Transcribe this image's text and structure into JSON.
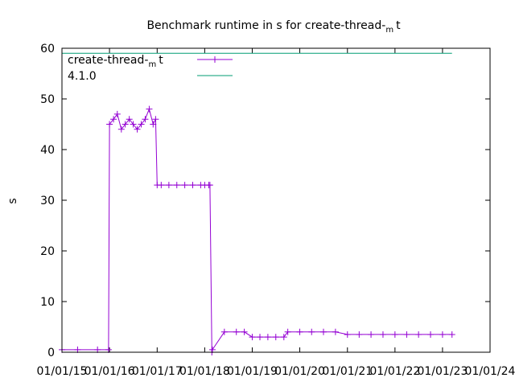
{
  "chart_data": {
    "type": "line",
    "title_main": "Benchmark runtime in s for create-thread-",
    "title_sub": "m",
    "title_end": "t",
    "xlabel": "",
    "ylabel": "s",
    "ylim": [
      0,
      60
    ],
    "yticks": [
      0,
      10,
      20,
      30,
      40,
      50,
      60
    ],
    "xlim": [
      "2015-01-01",
      "2024-01-01"
    ],
    "xticks": [
      "01/01/15",
      "01/01/16",
      "01/01/17",
      "01/01/18",
      "01/01/19",
      "01/01/20",
      "01/01/21",
      "01/01/22",
      "01/01/23",
      "01/01/24"
    ],
    "grid": false,
    "legend_position": "top-left",
    "series": [
      {
        "name_main": "create-thread-",
        "name_sub": "m",
        "name_end": "t",
        "color": "#9400d3",
        "marker": "plus",
        "x": [
          "2015-01-01",
          "2015-05-01",
          "2015-10-01",
          "2015-12-25",
          "2016-01-01",
          "2016-02-01",
          "2016-03-01",
          "2016-04-01",
          "2016-05-01",
          "2016-06-01",
          "2016-07-01",
          "2016-08-01",
          "2016-09-01",
          "2016-10-01",
          "2016-11-01",
          "2016-12-01",
          "2016-12-20",
          "2017-01-01",
          "2017-02-01",
          "2017-04-01",
          "2017-06-01",
          "2017-08-01",
          "2017-10-01",
          "2017-12-01",
          "2018-01-01",
          "2018-02-01",
          "2018-02-10",
          "2018-02-25",
          "2018-03-01",
          "2018-06-01",
          "2018-09-01",
          "2018-11-01",
          "2019-01-01",
          "2019-03-01",
          "2019-05-01",
          "2019-07-01",
          "2019-09-01",
          "2019-10-01",
          "2020-01-01",
          "2020-04-01",
          "2020-07-01",
          "2020-10-01",
          "2021-01-01",
          "2021-04-01",
          "2021-07-01",
          "2021-10-01",
          "2022-01-01",
          "2022-04-01",
          "2022-07-01",
          "2022-10-01",
          "2023-01-01",
          "2023-03-15"
        ],
        "y": [
          0.5,
          0.5,
          0.5,
          0.5,
          45,
          46,
          47,
          44,
          45,
          46,
          45,
          44,
          45,
          46,
          48,
          45,
          46,
          33,
          33,
          33,
          33,
          33,
          33,
          33,
          33,
          33,
          33,
          0,
          0.5,
          4,
          4,
          4,
          3,
          3,
          3,
          3,
          3,
          4,
          4,
          4,
          4,
          4,
          3.5,
          3.5,
          3.5,
          3.5,
          3.5,
          3.5,
          3.5,
          3.5,
          3.5,
          3.5
        ]
      },
      {
        "name": "4.1.0",
        "color": "#009e73",
        "marker": "none",
        "x": [
          "2015-01-01",
          "2023-03-15"
        ],
        "y": [
          59,
          59
        ]
      }
    ]
  }
}
